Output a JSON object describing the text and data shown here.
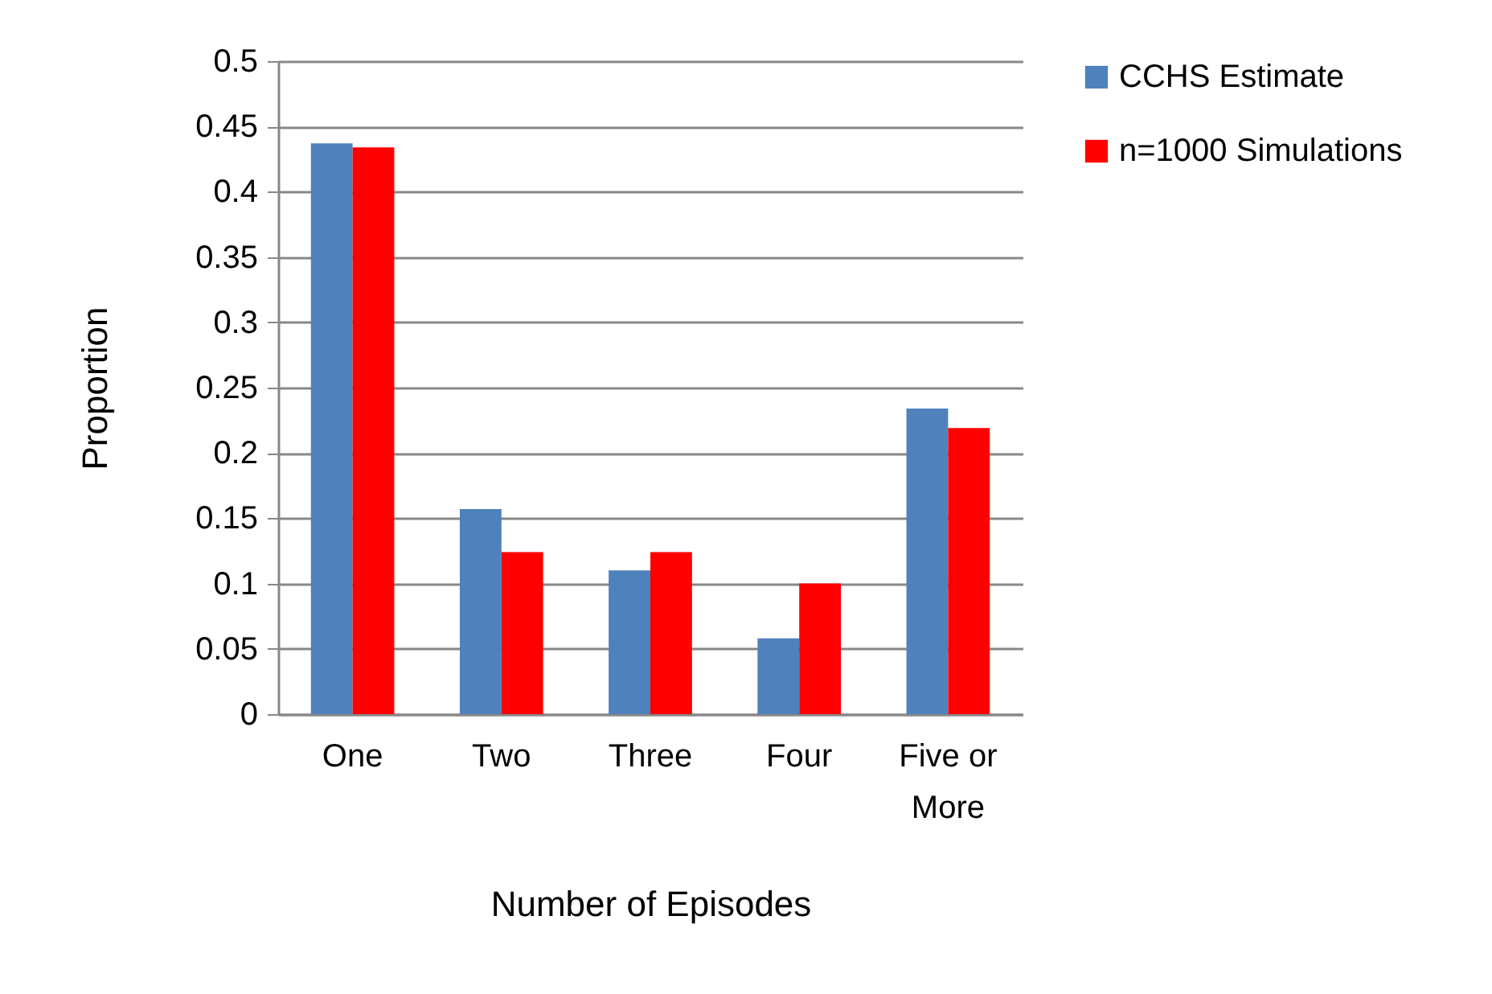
{
  "chart_data": {
    "type": "bar",
    "xlabel": "Number of Episodes",
    "ylabel": "Proportion",
    "categories": [
      "One",
      "Two",
      "Three",
      "Four",
      "Five or More"
    ],
    "series": [
      {
        "name": "CCHS Estimate",
        "color": "#4f81bd",
        "values": [
          0.437,
          0.157,
          0.11,
          0.058,
          0.234
        ]
      },
      {
        "name": "n=1000 Simulations",
        "color": "#ff0000",
        "values": [
          0.434,
          0.124,
          0.124,
          0.1,
          0.219
        ]
      }
    ],
    "ylim": [
      0,
      0.5
    ],
    "yticks": [
      0,
      0.05,
      0.1,
      0.15,
      0.2,
      0.25,
      0.3,
      0.35,
      0.4,
      0.45,
      0.5
    ],
    "grid": "y",
    "legend": "right"
  }
}
